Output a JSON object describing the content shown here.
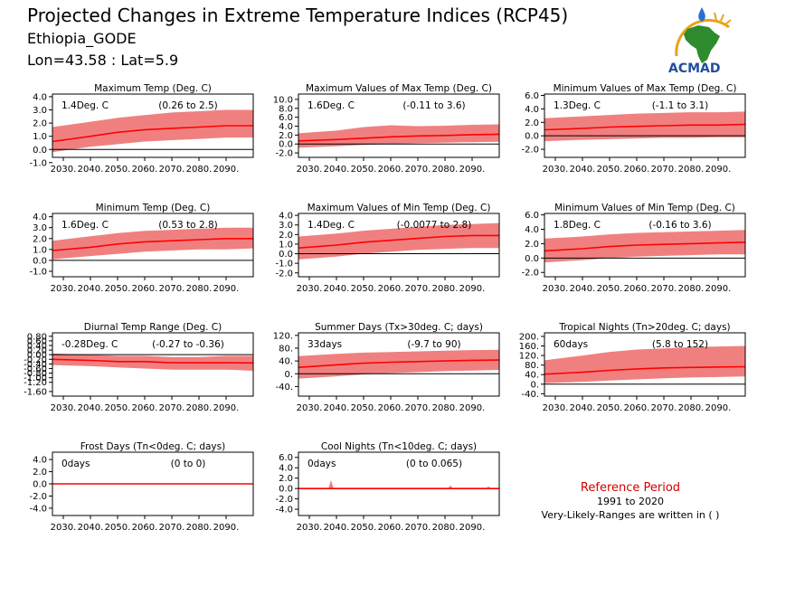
{
  "header": {
    "title": "Projected Changes in Extreme Temperature Indices (RCP45)",
    "location": "Ethiopia_GODE",
    "coords": "Lon=43.58 : Lat=5.9"
  },
  "logo": {
    "text": "ACMAD",
    "colors": {
      "africa": "#2e8b2e",
      "arc": "#e8a317",
      "drop": "#2a6fd1",
      "text": "#1f4e9c"
    }
  },
  "reference": {
    "title": "Reference Period",
    "period": "1991 to 2020",
    "note": "Very-Likely-Ranges are written in ( )"
  },
  "colors": {
    "band": "#f08080",
    "line": "#ff0000",
    "zero": "#000000"
  },
  "x_ticks": [
    "2030.",
    "2040.",
    "2050.",
    "2060.",
    "2070.",
    "2080.",
    "2090."
  ],
  "chart_data": [
    {
      "type": "area",
      "title": "Maximum Temp (Deg. C)",
      "change": "1.4Deg. C",
      "range": "(0.26 to 2.5)",
      "xlim": [
        2026,
        2100
      ],
      "ylim": [
        -0.6,
        4.2
      ],
      "yticks": [
        4.0,
        3.0,
        2.0,
        1.0,
        0.0,
        -1.0
      ],
      "ytick_labels": [
        "4.0",
        "3.0",
        "2.0",
        "1.0",
        "0.0",
        "-1.0"
      ],
      "mean": [
        [
          2026,
          0.6
        ],
        [
          2040,
          1.0
        ],
        [
          2050,
          1.3
        ],
        [
          2060,
          1.5
        ],
        [
          2070,
          1.6
        ],
        [
          2080,
          1.7
        ],
        [
          2090,
          1.8
        ],
        [
          2100,
          1.8
        ]
      ],
      "lower": [
        [
          2026,
          -0.2
        ],
        [
          2040,
          0.2
        ],
        [
          2050,
          0.4
        ],
        [
          2060,
          0.6
        ],
        [
          2070,
          0.7
        ],
        [
          2080,
          0.8
        ],
        [
          2090,
          0.9
        ],
        [
          2100,
          0.9
        ]
      ],
      "upper": [
        [
          2026,
          1.7
        ],
        [
          2040,
          2.1
        ],
        [
          2050,
          2.4
        ],
        [
          2060,
          2.6
        ],
        [
          2070,
          2.8
        ],
        [
          2080,
          2.9
        ],
        [
          2090,
          3.0
        ],
        [
          2100,
          3.0
        ]
      ]
    },
    {
      "type": "area",
      "title": "Maximum Values of Max Temp (Deg. C)",
      "change": "1.6Deg. C",
      "range": "(-0.11 to 3.6)",
      "xlim": [
        2026,
        2100
      ],
      "ylim": [
        -3.0,
        11.2
      ],
      "yticks": [
        10.0,
        8.0,
        6.0,
        4.0,
        2.0,
        0.0,
        -2.0
      ],
      "ytick_labels": [
        "10.0",
        "8.0",
        "6.0",
        "4.0",
        "2.0",
        "0.0",
        "-2.0"
      ],
      "mean": [
        [
          2026,
          0.7
        ],
        [
          2040,
          1.0
        ],
        [
          2050,
          1.3
        ],
        [
          2060,
          1.6
        ],
        [
          2070,
          1.8
        ],
        [
          2080,
          1.9
        ],
        [
          2090,
          2.1
        ],
        [
          2100,
          2.2
        ]
      ],
      "lower": [
        [
          2026,
          -0.8
        ],
        [
          2040,
          -0.5
        ],
        [
          2050,
          -0.2
        ],
        [
          2060,
          0.0
        ],
        [
          2070,
          0.2
        ],
        [
          2080,
          0.3
        ],
        [
          2090,
          0.4
        ],
        [
          2100,
          0.5
        ]
      ],
      "upper": [
        [
          2026,
          2.4
        ],
        [
          2040,
          3.0
        ],
        [
          2050,
          3.8
        ],
        [
          2060,
          4.2
        ],
        [
          2070,
          4.0
        ],
        [
          2080,
          4.1
        ],
        [
          2090,
          4.3
        ],
        [
          2100,
          4.4
        ]
      ]
    },
    {
      "type": "area",
      "title": "Minimum Values of Max Temp (Deg. C)",
      "change": "1.3Deg. C",
      "range": "(-1.1 to 3.1)",
      "xlim": [
        2026,
        2100
      ],
      "ylim": [
        -3.2,
        6.2
      ],
      "yticks": [
        6.0,
        4.0,
        2.0,
        0.0,
        -2.0
      ],
      "ytick_labels": [
        "6.0",
        "4.0",
        "2.0",
        "0.0",
        "-2.0"
      ],
      "mean": [
        [
          2026,
          0.9
        ],
        [
          2040,
          1.1
        ],
        [
          2050,
          1.3
        ],
        [
          2060,
          1.4
        ],
        [
          2070,
          1.5
        ],
        [
          2080,
          1.6
        ],
        [
          2090,
          1.6
        ],
        [
          2100,
          1.7
        ]
      ],
      "lower": [
        [
          2026,
          -0.8
        ],
        [
          2040,
          -0.6
        ],
        [
          2050,
          -0.5
        ],
        [
          2060,
          -0.4
        ],
        [
          2070,
          -0.3
        ],
        [
          2080,
          -0.3
        ],
        [
          2090,
          -0.2
        ],
        [
          2100,
          -0.2
        ]
      ],
      "upper": [
        [
          2026,
          2.6
        ],
        [
          2040,
          2.9
        ],
        [
          2050,
          3.1
        ],
        [
          2060,
          3.3
        ],
        [
          2070,
          3.4
        ],
        [
          2080,
          3.5
        ],
        [
          2090,
          3.5
        ],
        [
          2100,
          3.6
        ]
      ]
    },
    {
      "type": "area",
      "title": "Minimum Temp (Deg. C)",
      "change": "1.6Deg. C",
      "range": "(0.53 to 2.8)",
      "xlim": [
        2026,
        2100
      ],
      "ylim": [
        -1.5,
        4.3
      ],
      "yticks": [
        4.0,
        3.0,
        2.0,
        1.0,
        0.0,
        -1.0
      ],
      "ytick_labels": [
        "4.0",
        "3.0",
        "2.0",
        "1.0",
        "0.0",
        "-1.0"
      ],
      "mean": [
        [
          2026,
          0.9
        ],
        [
          2040,
          1.2
        ],
        [
          2050,
          1.5
        ],
        [
          2060,
          1.7
        ],
        [
          2070,
          1.8
        ],
        [
          2080,
          1.9
        ],
        [
          2090,
          2.0
        ],
        [
          2100,
          2.0
        ]
      ],
      "lower": [
        [
          2026,
          0.1
        ],
        [
          2040,
          0.4
        ],
        [
          2050,
          0.6
        ],
        [
          2060,
          0.8
        ],
        [
          2070,
          0.9
        ],
        [
          2080,
          1.0
        ],
        [
          2090,
          1.0
        ],
        [
          2100,
          1.1
        ]
      ],
      "upper": [
        [
          2026,
          1.8
        ],
        [
          2040,
          2.2
        ],
        [
          2050,
          2.5
        ],
        [
          2060,
          2.7
        ],
        [
          2070,
          2.8
        ],
        [
          2080,
          2.9
        ],
        [
          2090,
          3.0
        ],
        [
          2100,
          3.0
        ]
      ]
    },
    {
      "type": "area",
      "title": "Maximum Values of Min Temp (Deg. C)",
      "change": "1.4Deg. C",
      "range": "(-0.0077 to 2.8)",
      "xlim": [
        2026,
        2100
      ],
      "ylim": [
        -2.4,
        4.2
      ],
      "yticks": [
        4.0,
        3.0,
        2.0,
        1.0,
        0.0,
        -1.0,
        -2.0
      ],
      "ytick_labels": [
        "4.0",
        "3.0",
        "2.0",
        "1.0",
        "0.0",
        "-1.0",
        "-2.0"
      ],
      "mean": [
        [
          2026,
          0.6
        ],
        [
          2040,
          0.9
        ],
        [
          2050,
          1.2
        ],
        [
          2060,
          1.4
        ],
        [
          2070,
          1.6
        ],
        [
          2080,
          1.8
        ],
        [
          2090,
          1.9
        ],
        [
          2100,
          1.9
        ]
      ],
      "lower": [
        [
          2026,
          -0.6
        ],
        [
          2040,
          -0.3
        ],
        [
          2050,
          0.0
        ],
        [
          2060,
          0.2
        ],
        [
          2070,
          0.4
        ],
        [
          2080,
          0.5
        ],
        [
          2090,
          0.6
        ],
        [
          2100,
          0.6
        ]
      ],
      "upper": [
        [
          2026,
          1.8
        ],
        [
          2040,
          2.1
        ],
        [
          2050,
          2.4
        ],
        [
          2060,
          2.6
        ],
        [
          2070,
          2.8
        ],
        [
          2080,
          3.0
        ],
        [
          2090,
          3.1
        ],
        [
          2100,
          3.2
        ]
      ]
    },
    {
      "type": "area",
      "title": "Minimum Values of Min Temp (Deg. C)",
      "change": "1.8Deg. C",
      "range": "(-0.16 to 3.6)",
      "xlim": [
        2026,
        2100
      ],
      "ylim": [
        -2.6,
        6.2
      ],
      "yticks": [
        6.0,
        4.0,
        2.0,
        0.0,
        -2.0
      ],
      "ytick_labels": [
        "6.0",
        "4.0",
        "2.0",
        "0.0",
        "-2.0"
      ],
      "mean": [
        [
          2026,
          1.0
        ],
        [
          2040,
          1.3
        ],
        [
          2050,
          1.6
        ],
        [
          2060,
          1.8
        ],
        [
          2070,
          1.9
        ],
        [
          2080,
          2.0
        ],
        [
          2090,
          2.1
        ],
        [
          2100,
          2.2
        ]
      ],
      "lower": [
        [
          2026,
          -0.6
        ],
        [
          2040,
          -0.3
        ],
        [
          2050,
          0.0
        ],
        [
          2060,
          0.2
        ],
        [
          2070,
          0.3
        ],
        [
          2080,
          0.4
        ],
        [
          2090,
          0.5
        ],
        [
          2100,
          0.5
        ]
      ],
      "upper": [
        [
          2026,
          2.7
        ],
        [
          2040,
          3.0
        ],
        [
          2050,
          3.3
        ],
        [
          2060,
          3.5
        ],
        [
          2070,
          3.6
        ],
        [
          2080,
          3.7
        ],
        [
          2090,
          3.8
        ],
        [
          2100,
          3.9
        ]
      ]
    },
    {
      "type": "area",
      "title": "Diurnal Temp Range (Deg. C)",
      "change": "-0.28Deg. C",
      "range": "(-0.27 to -0.36)",
      "xlim": [
        2026,
        2100
      ],
      "ylim": [
        -1.8,
        0.95
      ],
      "yticks": [
        0.8,
        0.6,
        0.4,
        0.2,
        0.0,
        -0.2,
        -0.4,
        -0.6,
        -0.8,
        -1.0,
        -1.2,
        -1.6
      ],
      "ytick_labels": [
        "0.80",
        "0.60",
        "0.40",
        "0.20",
        "0.00",
        "-0.20",
        "-0.40",
        "-0.60",
        "-0.80",
        "-1.00",
        "-1.20",
        "-1.60"
      ],
      "mean": [
        [
          2026,
          -0.2
        ],
        [
          2040,
          -0.25
        ],
        [
          2050,
          -0.3
        ],
        [
          2060,
          -0.3
        ],
        [
          2070,
          -0.35
        ],
        [
          2080,
          -0.35
        ],
        [
          2090,
          -0.35
        ],
        [
          2100,
          -0.36
        ]
      ],
      "lower": [
        [
          2026,
          -0.45
        ],
        [
          2040,
          -0.5
        ],
        [
          2050,
          -0.55
        ],
        [
          2060,
          -0.6
        ],
        [
          2070,
          -0.65
        ],
        [
          2080,
          -0.65
        ],
        [
          2090,
          -0.65
        ],
        [
          2100,
          -0.7
        ]
      ],
      "upper": [
        [
          2026,
          0.05
        ],
        [
          2040,
          0.0
        ],
        [
          2050,
          -0.05
        ],
        [
          2060,
          -0.05
        ],
        [
          2070,
          -0.1
        ],
        [
          2080,
          -0.1
        ],
        [
          2090,
          -0.05
        ],
        [
          2100,
          -0.05
        ]
      ]
    },
    {
      "type": "area",
      "title": "Summer Days (Tx>30deg. C; days)",
      "change": "33days",
      "range": "(-9.7 to 90)",
      "xlim": [
        2026,
        2100
      ],
      "ylim": [
        -70,
        128
      ],
      "yticks": [
        120,
        80,
        40,
        0,
        -40
      ],
      "ytick_labels": [
        "120.",
        "80.",
        "40.",
        "0.",
        "-40."
      ],
      "mean": [
        [
          2026,
          20
        ],
        [
          2040,
          28
        ],
        [
          2050,
          33
        ],
        [
          2060,
          36
        ],
        [
          2070,
          38
        ],
        [
          2080,
          40
        ],
        [
          2090,
          42
        ],
        [
          2100,
          43
        ]
      ],
      "lower": [
        [
          2026,
          -15
        ],
        [
          2040,
          -8
        ],
        [
          2050,
          -2
        ],
        [
          2060,
          2
        ],
        [
          2070,
          5
        ],
        [
          2080,
          8
        ],
        [
          2090,
          10
        ],
        [
          2100,
          12
        ]
      ],
      "upper": [
        [
          2026,
          55
        ],
        [
          2040,
          62
        ],
        [
          2050,
          66
        ],
        [
          2060,
          68
        ],
        [
          2070,
          70
        ],
        [
          2080,
          72
        ],
        [
          2090,
          74
        ],
        [
          2100,
          75
        ]
      ]
    },
    {
      "type": "area",
      "title": "Tropical Nights (Tn>20deg. C; days)",
      "change": "60days",
      "range": "(5.8 to 152)",
      "xlim": [
        2026,
        2100
      ],
      "ylim": [
        -50,
        215
      ],
      "yticks": [
        200,
        160,
        120,
        80,
        40,
        0,
        -40
      ],
      "ytick_labels": [
        "200.",
        "160.",
        "120.",
        "80.",
        "40.",
        "0.",
        "-40."
      ],
      "mean": [
        [
          2026,
          42
        ],
        [
          2040,
          50
        ],
        [
          2050,
          58
        ],
        [
          2060,
          64
        ],
        [
          2070,
          68
        ],
        [
          2080,
          70
        ],
        [
          2090,
          72
        ],
        [
          2100,
          73
        ]
      ],
      "lower": [
        [
          2026,
          5
        ],
        [
          2040,
          10
        ],
        [
          2050,
          15
        ],
        [
          2060,
          20
        ],
        [
          2070,
          25
        ],
        [
          2080,
          28
        ],
        [
          2090,
          30
        ],
        [
          2100,
          32
        ]
      ],
      "upper": [
        [
          2026,
          100
        ],
        [
          2040,
          120
        ],
        [
          2050,
          135
        ],
        [
          2060,
          145
        ],
        [
          2070,
          150
        ],
        [
          2080,
          155
        ],
        [
          2090,
          158
        ],
        [
          2100,
          160
        ]
      ]
    },
    {
      "type": "area",
      "title": "Frost Days (Tn<0deg. C; days)",
      "change": "0days",
      "range": "(0 to 0)",
      "xlim": [
        2026,
        2100
      ],
      "ylim": [
        -5.2,
        5.2
      ],
      "yticks": [
        4.0,
        2.0,
        0.0,
        -2.0,
        -4.0
      ],
      "ytick_labels": [
        "4.0",
        "2.0",
        "0.0",
        "-2.0",
        "-4.0"
      ],
      "mean": [
        [
          2026,
          0
        ],
        [
          2100,
          0
        ]
      ],
      "lower": [
        [
          2026,
          0
        ],
        [
          2100,
          0
        ]
      ],
      "upper": [
        [
          2026,
          0
        ],
        [
          2100,
          0
        ]
      ]
    },
    {
      "type": "area",
      "title": "Cool Nights (Tn<10deg. C; days)",
      "change": "0days",
      "range": "(0 to 0.065)",
      "xlim": [
        2026,
        2100
      ],
      "ylim": [
        -5.2,
        7.0
      ],
      "yticks": [
        6.0,
        4.0,
        2.0,
        0.0,
        -2.0,
        -4.0
      ],
      "ytick_labels": [
        "6.0",
        "4.0",
        "2.0",
        "0.0",
        "-2.0",
        "-4.0"
      ],
      "mean": [
        [
          2026,
          0
        ],
        [
          2100,
          0
        ]
      ],
      "lower": [
        [
          2026,
          0
        ],
        [
          2100,
          0
        ]
      ],
      "upper": [
        [
          2026,
          0
        ],
        [
          2037,
          0
        ],
        [
          2038,
          1.6
        ],
        [
          2039,
          0
        ],
        [
          2081,
          0
        ],
        [
          2082,
          0.6
        ],
        [
          2083,
          0
        ],
        [
          2095,
          0
        ],
        [
          2096,
          0.4
        ],
        [
          2097,
          0
        ],
        [
          2100,
          0
        ]
      ]
    }
  ]
}
